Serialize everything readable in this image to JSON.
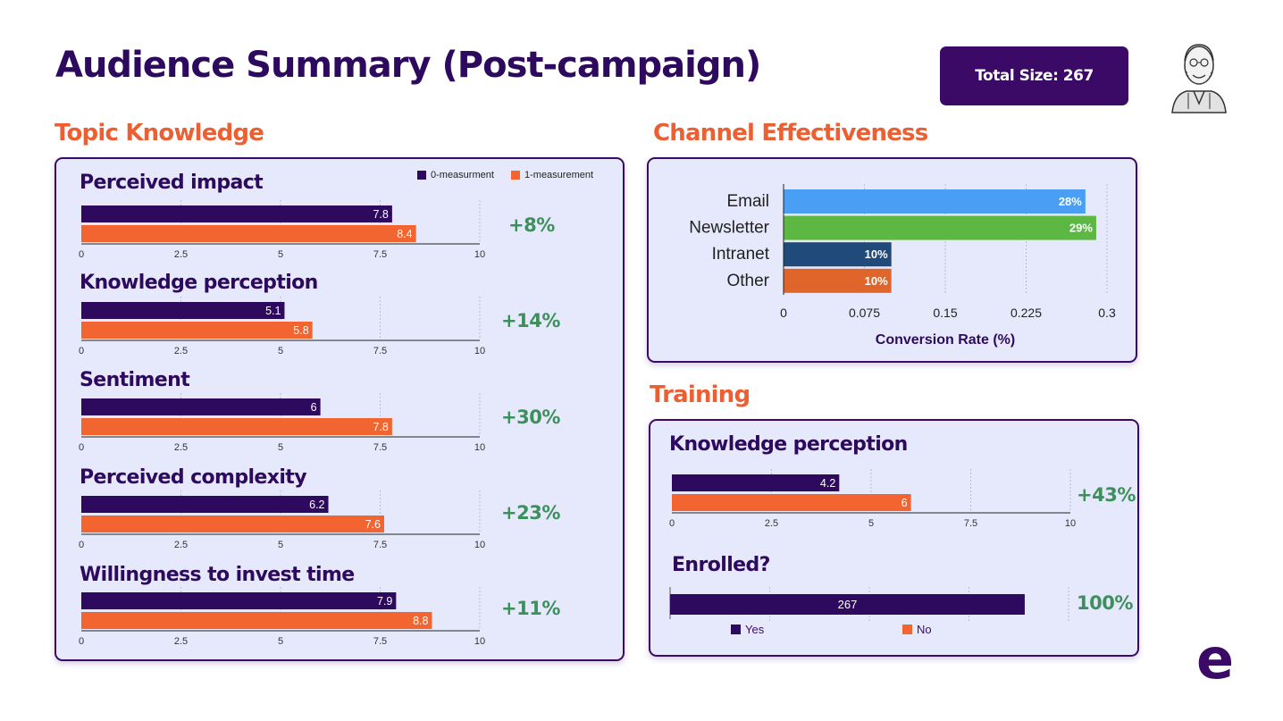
{
  "page": {
    "title": "Audience Summary (Post-campaign)",
    "total_size": "Total Size: 267"
  },
  "colors": {
    "measure0": "#2d0a5e",
    "measure1": "#f26430",
    "positive": "#3d8f5c",
    "accent": "#ec5f33",
    "email": "#4a9ff5",
    "newsletter": "#5cb843",
    "intranet": "#1f4a7a",
    "other": "#e0652a"
  },
  "topic_knowledge": {
    "title": "Topic Knowledge",
    "legend": [
      "0-measurment",
      "1-measurement"
    ],
    "charts": [
      {
        "title": "Perceived impact",
        "change": "+8%"
      },
      {
        "title": "Knowledge perception",
        "change": "+14%"
      },
      {
        "title": "Sentiment",
        "change": "+30%"
      },
      {
        "title": "Perceived complexity",
        "change": "+23%"
      },
      {
        "title": "Willingness to invest time",
        "change": "+11%"
      }
    ]
  },
  "channel": {
    "title": "Channel Effectiveness"
  },
  "training": {
    "title": "Training",
    "knowledge": {
      "title": "Knowledge perception",
      "change": "+43%"
    },
    "enrolled": {
      "title": "Enrolled?",
      "change": "100%",
      "legend": [
        "Yes",
        "No"
      ]
    }
  },
  "logo": {
    "letter": "e"
  },
  "chart_data": [
    {
      "type": "bar",
      "title": "Perceived impact",
      "series": [
        {
          "name": "0-measurment",
          "values": [
            7.8
          ]
        },
        {
          "name": "1-measurement",
          "values": [
            8.4
          ]
        }
      ],
      "xlim": [
        0,
        10
      ],
      "xticks": [
        "0",
        "2.5",
        "5",
        "7.5",
        "10"
      ]
    },
    {
      "type": "bar",
      "title": "Knowledge perception",
      "series": [
        {
          "name": "0-measurment",
          "values": [
            5.1
          ]
        },
        {
          "name": "1-measurement",
          "values": [
            5.8
          ]
        }
      ],
      "xlim": [
        0,
        10
      ],
      "xticks": [
        "0",
        "2.5",
        "5",
        "7.5",
        "10"
      ]
    },
    {
      "type": "bar",
      "title": "Sentiment",
      "series": [
        {
          "name": "0-measurment",
          "values": [
            6
          ]
        },
        {
          "name": "1-measurement",
          "values": [
            7.8
          ]
        }
      ],
      "xlim": [
        0,
        10
      ],
      "xticks": [
        "0",
        "2.5",
        "5",
        "7.5",
        "10"
      ]
    },
    {
      "type": "bar",
      "title": "Perceived complexity",
      "series": [
        {
          "name": "0-measurment",
          "values": [
            6.2
          ]
        },
        {
          "name": "1-measurement",
          "values": [
            7.6
          ]
        }
      ],
      "xlim": [
        0,
        10
      ],
      "xticks": [
        "0",
        "2.5",
        "5",
        "7.5",
        "10"
      ]
    },
    {
      "type": "bar",
      "title": "Willingness to invest time",
      "series": [
        {
          "name": "0-measurment",
          "values": [
            7.9
          ]
        },
        {
          "name": "1-measurement",
          "values": [
            8.8
          ]
        }
      ],
      "xlim": [
        0,
        10
      ],
      "xticks": [
        "0",
        "2.5",
        "5",
        "7.5",
        "10"
      ]
    },
    {
      "type": "bar",
      "title": "Channel Effectiveness",
      "categories": [
        "Email",
        "Newsletter",
        "Intranet",
        "Other"
      ],
      "values": [
        0.28,
        0.29,
        0.1,
        0.1
      ],
      "data_labels": [
        "28%",
        "29%",
        "10%",
        "10%"
      ],
      "xlabel": "Conversion Rate (%)",
      "xlim": [
        0,
        0.3
      ],
      "xticks": [
        "0",
        "0.075",
        "0.15",
        "0.225",
        "0.3"
      ]
    },
    {
      "type": "bar",
      "title": "Knowledge perception",
      "series": [
        {
          "name": "0-measurment",
          "values": [
            4.2
          ]
        },
        {
          "name": "1-measurement",
          "values": [
            6
          ]
        }
      ],
      "xlim": [
        0,
        10
      ],
      "xticks": [
        "0",
        "2.5",
        "5",
        "7.5",
        "10"
      ]
    },
    {
      "type": "bar",
      "title": "Enrolled?",
      "series": [
        {
          "name": "Yes",
          "values": [
            267
          ]
        },
        {
          "name": "No",
          "values": [
            0
          ]
        }
      ],
      "xlim": [
        0,
        300
      ]
    }
  ]
}
